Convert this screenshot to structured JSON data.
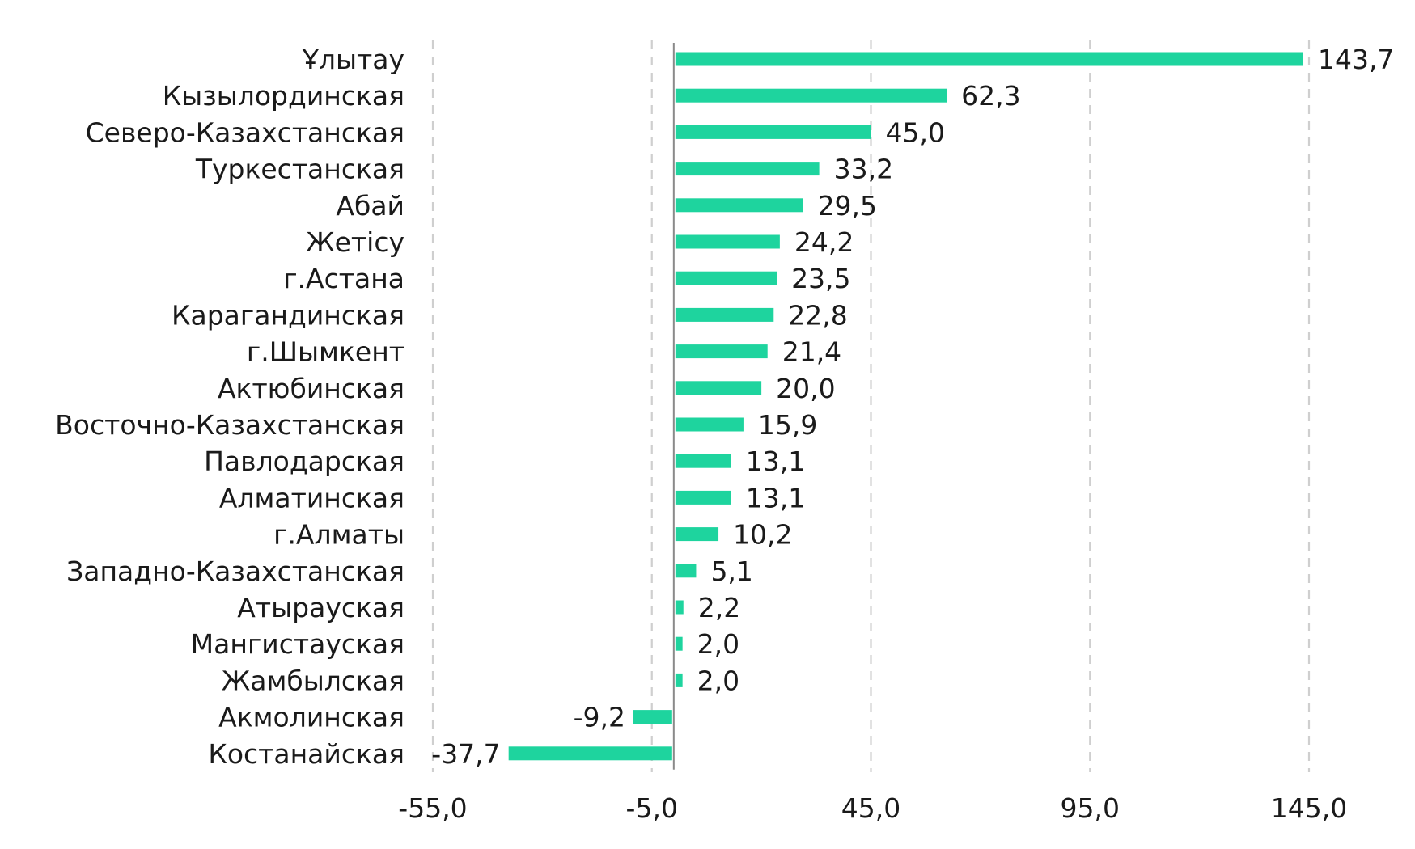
{
  "chart_data": {
    "type": "bar",
    "orientation": "horizontal",
    "categories": [
      "Ұлытау",
      "Кызылординская",
      "Северо-Казахстанская",
      "Туркестанская",
      "Абай",
      "Жетісу",
      "г.Астана",
      "Карагандинская",
      "г.Шымкент",
      "Актюбинская",
      "Восточно-Казахстанская",
      "Павлодарская",
      "Алматинская",
      "г.Алматы",
      "Западно-Казахстанская",
      "Атырауская",
      "Мангистауская",
      "Жамбылская",
      "Акмолинская",
      "Костанайская"
    ],
    "values": [
      143.7,
      62.3,
      45.0,
      33.2,
      29.5,
      24.2,
      23.5,
      22.8,
      21.4,
      20.0,
      15.9,
      13.1,
      13.1,
      10.2,
      5.1,
      2.2,
      2.0,
      2.0,
      -9.2,
      -37.7
    ],
    "value_labels": [
      "143,7",
      "62,3",
      "45,0",
      "33,2",
      "29,5",
      "24,2",
      "23,5",
      "22,8",
      "21,4",
      "20,0",
      "15,9",
      "13,1",
      "13,1",
      "10,2",
      "5,1",
      "2,2",
      "2,0",
      "2,0",
      "-9,2",
      "-37,7"
    ],
    "x_ticks": [
      -55,
      -5,
      45,
      95,
      145
    ],
    "x_tick_labels": [
      "-55,0",
      "-5,0",
      "45,0",
      "95,0",
      "145,0"
    ],
    "xlim": [
      -55,
      145
    ],
    "grid": "vertical dashed",
    "legend": "none",
    "bar_color": "#1ed49e",
    "title": "",
    "xlabel": "",
    "ylabel": ""
  }
}
